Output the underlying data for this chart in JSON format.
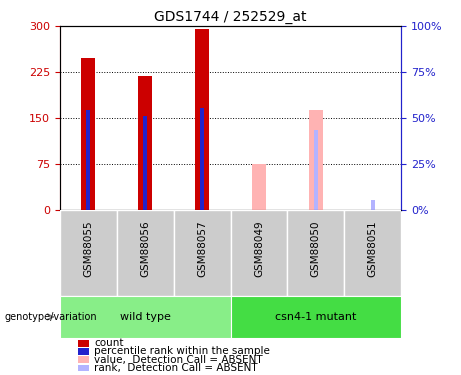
{
  "title": "GDS1744 / 252529_at",
  "samples": [
    "GSM88055",
    "GSM88056",
    "GSM88057",
    "GSM88049",
    "GSM88050",
    "GSM88051"
  ],
  "count_values": [
    248,
    218,
    295,
    null,
    null,
    null
  ],
  "rank_values": [
    163,
    153,
    167,
    null,
    null,
    null
  ],
  "absent_count_values": [
    null,
    null,
    null,
    75,
    163,
    null
  ],
  "absent_rank_values": [
    null,
    null,
    null,
    null,
    130,
    17
  ],
  "ylim_left": [
    0,
    300
  ],
  "ylim_right": [
    0,
    100
  ],
  "yticks_left": [
    0,
    75,
    150,
    225,
    300
  ],
  "yticks_right": [
    0,
    25,
    50,
    75,
    100
  ],
  "count_color": "#cc0000",
  "rank_color": "#2222cc",
  "absent_count_color": "#ffb3b3",
  "absent_rank_color": "#b3b3ff",
  "wt_color": "#88ee88",
  "mut_color": "#44dd44",
  "sample_box_color": "#cccccc",
  "left_axis_color": "#cc0000",
  "right_axis_color": "#2222cc",
  "grid_color": "black",
  "figsize": [
    4.61,
    3.75
  ],
  "dpi": 100,
  "legend_labels": [
    "count",
    "percentile rank within the sample",
    "value,  Detection Call = ABSENT",
    "rank,  Detection Call = ABSENT"
  ],
  "group_labels": [
    "wild type",
    "csn4-1 mutant"
  ],
  "genotype_label": "genotype/variation"
}
